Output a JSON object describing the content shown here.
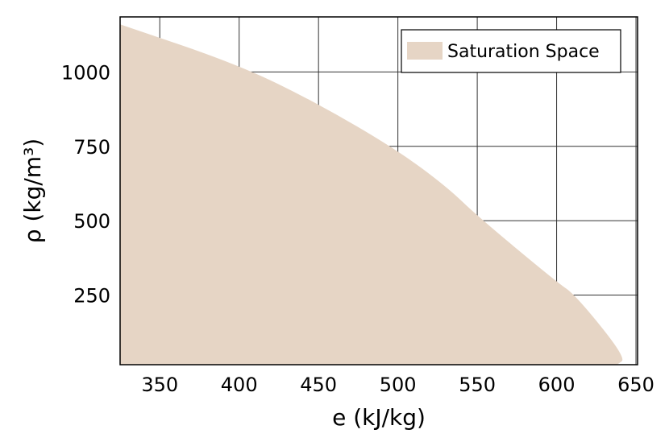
{
  "chart_data": {
    "type": "area",
    "title": "",
    "xlabel": "e (kJ/kg)",
    "ylabel": "ρ (kg/m³)",
    "xlim": [
      325,
      651
    ],
    "ylim": [
      16,
      1185
    ],
    "grid": true,
    "legend_position": "upper right",
    "xticks": [
      350,
      400,
      450,
      500,
      550,
      600,
      650
    ],
    "yticks": [
      250,
      500,
      750,
      1000
    ],
    "series": [
      {
        "name": "Saturation Space",
        "color": "#e6d5c5",
        "boundary": {
          "e": [
            325,
            400,
            450,
            500,
            531,
            550,
            600,
            612,
            644,
            638
          ],
          "rho": [
            1160,
            1024,
            893,
            736,
            613,
            516,
            294,
            250,
            38,
            16
          ]
        }
      }
    ]
  },
  "legend": {
    "label": "Saturation Space",
    "swatch_color": "#e6d5c5"
  },
  "axes": {
    "xlabel": "e (kJ/kg)",
    "ylabel": "ρ (kg/m³)",
    "xtick_labels": [
      "350",
      "400",
      "450",
      "500",
      "550",
      "600",
      "650"
    ],
    "ytick_labels": [
      "250",
      "500",
      "750",
      "1000"
    ]
  }
}
